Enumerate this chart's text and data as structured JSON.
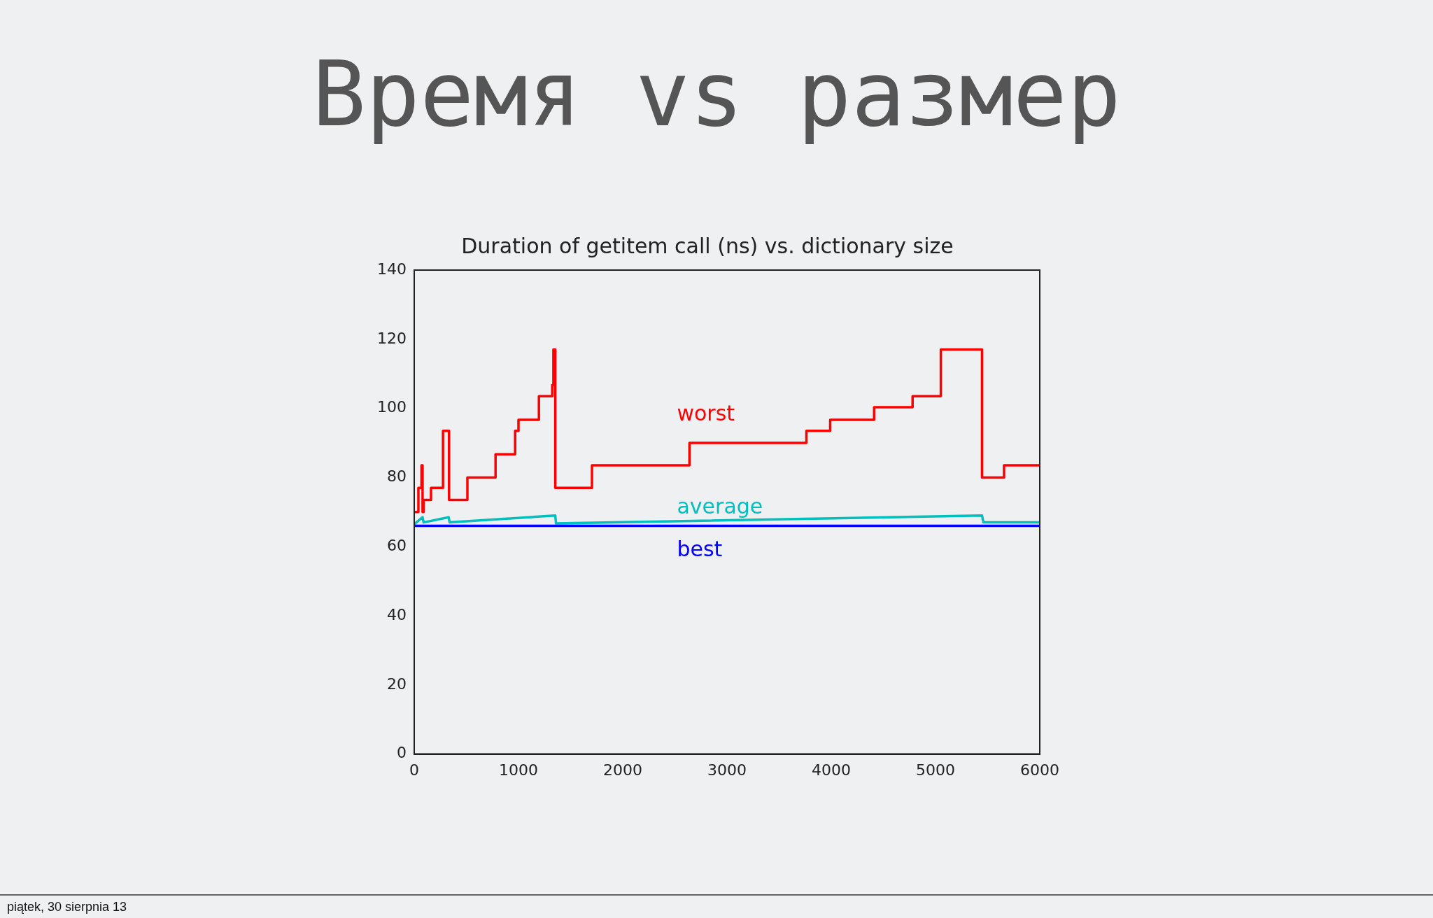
{
  "chart_data": {
    "type": "line",
    "title": "Duration of getitem call (ns) vs. dictionary size",
    "subtitle": "Время vs размер",
    "annotations": [
      "piątek, 30 sierpnia 13"
    ],
    "xlim": [
      0,
      6000
    ],
    "xticks": [
      0,
      1000,
      2000,
      3000,
      4000,
      5000,
      6000
    ],
    "ylim": [
      0,
      140
    ],
    "yticks": [
      0,
      20,
      40,
      60,
      80,
      100,
      120,
      140
    ],
    "grid": false,
    "legend": false,
    "marker": "none",
    "line_style": "solid",
    "series": [
      {
        "name": "worst",
        "type": "step",
        "color": "#ff0000",
        "x": [
          0,
          40,
          70,
          80,
          90,
          161,
          276,
          334,
          510,
          780,
          968,
          1000,
          1196,
          1324,
          1335,
          1353,
          1705,
          2640,
          3762,
          3990,
          4411,
          4780,
          5051,
          5446,
          5657,
          6000
        ],
        "values": [
          70,
          77,
          83.5,
          70,
          73.5,
          77,
          93.5,
          73.5,
          80,
          86.7,
          93.5,
          96.7,
          103.5,
          106.7,
          117,
          77,
          83.5,
          90,
          93.5,
          96.7,
          100.3,
          103.5,
          117,
          80,
          83.5,
          83.5
        ]
      },
      {
        "name": "average",
        "type": "line",
        "color": "#00bfbf",
        "x": [
          0,
          80,
          90,
          330,
          340,
          1353,
          1360,
          5446,
          5460,
          6000
        ],
        "values": [
          66.5,
          68.5,
          67,
          68.5,
          67,
          69,
          66.7,
          69,
          67,
          67
        ]
      },
      {
        "name": "best",
        "type": "line",
        "color": "#0000ff",
        "x": [
          0,
          6000
        ],
        "values": [
          66,
          66
        ]
      }
    ]
  }
}
